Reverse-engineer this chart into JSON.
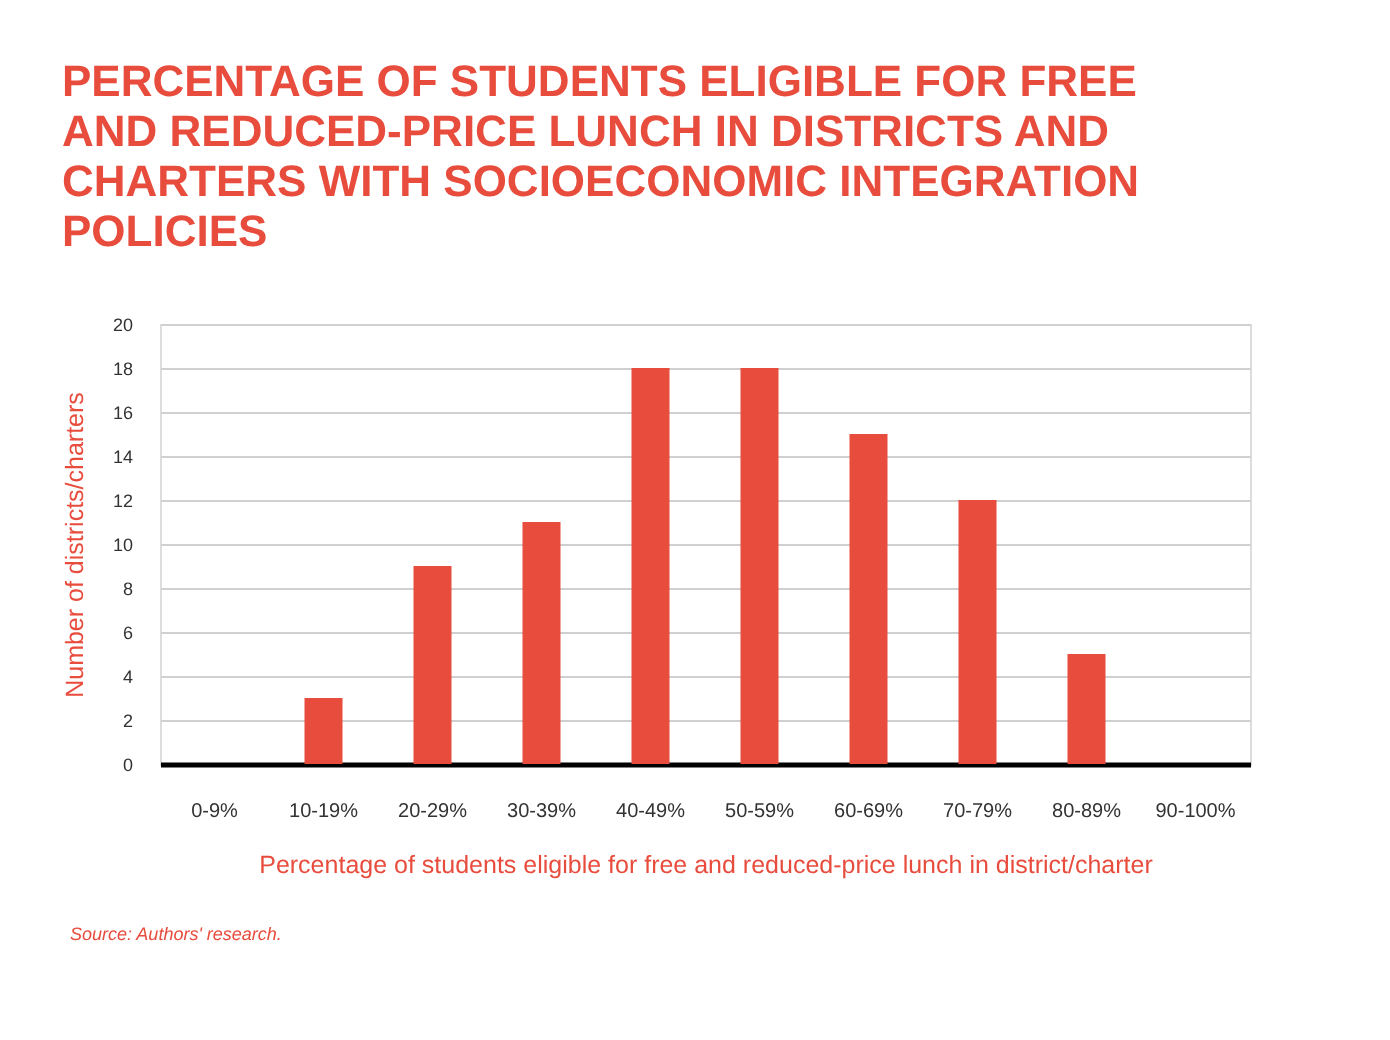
{
  "chart_data": {
    "type": "bar",
    "title": "PERCENTAGE OF STUDENTS ELIGIBLE FOR FREE AND REDUCED-PRICE LUNCH IN DISTRICTS AND CHARTERS WITH SOCIOECONOMIC INTEGRATION POLICIES",
    "xlabel": "Percentage of students eligible for free and reduced-price lunch in district/charter",
    "ylabel": "Number of districts/charters",
    "categories": [
      "0-9%",
      "10-19%",
      "20-29%",
      "30-39%",
      "40-49%",
      "50-59%",
      "60-69%",
      "70-79%",
      "80-89%",
      "90-100%"
    ],
    "values": [
      0,
      3,
      9,
      11,
      18,
      18,
      15,
      12,
      5,
      0
    ],
    "color": "#e84c3d",
    "ylim": [
      0,
      20
    ],
    "yticks": [
      0,
      2,
      4,
      6,
      8,
      10,
      12,
      14,
      16,
      18,
      20
    ],
    "grid": "y",
    "annotations": [
      "Source: Authors' research."
    ]
  }
}
